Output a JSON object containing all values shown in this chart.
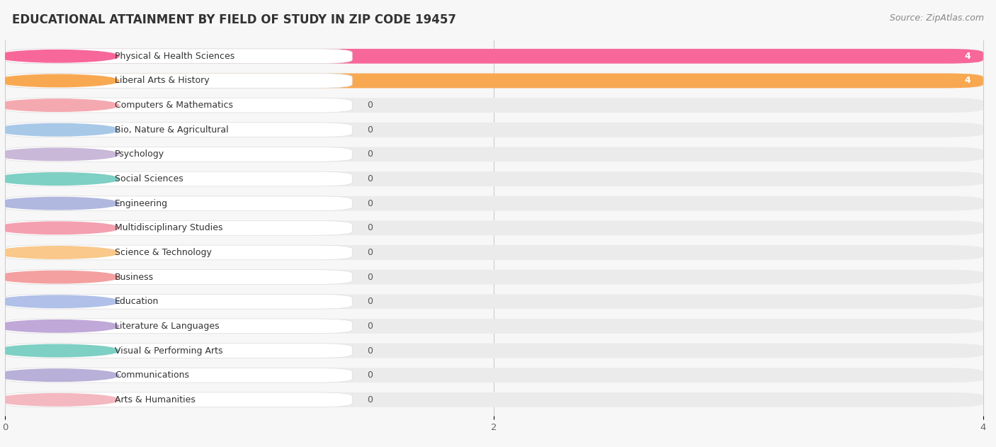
{
  "title": "EDUCATIONAL ATTAINMENT BY FIELD OF STUDY IN ZIP CODE 19457",
  "source": "Source: ZipAtlas.com",
  "categories": [
    "Physical & Health Sciences",
    "Liberal Arts & History",
    "Computers & Mathematics",
    "Bio, Nature & Agricultural",
    "Psychology",
    "Social Sciences",
    "Engineering",
    "Multidisciplinary Studies",
    "Science & Technology",
    "Business",
    "Education",
    "Literature & Languages",
    "Visual & Performing Arts",
    "Communications",
    "Arts & Humanities"
  ],
  "values": [
    4,
    4,
    0,
    0,
    0,
    0,
    0,
    0,
    0,
    0,
    0,
    0,
    0,
    0,
    0
  ],
  "bar_colors": [
    "#F7679A",
    "#F9A852",
    "#F4A9B0",
    "#A8C8E8",
    "#C9B8D8",
    "#7ECFC4",
    "#B0B8E0",
    "#F4A0B0",
    "#F9C88A",
    "#F4A0A0",
    "#B0C0E8",
    "#C0A8D8",
    "#7ECFC4",
    "#B8B0D8",
    "#F4B8C0"
  ],
  "bg_bar_color": "#EBEBEB",
  "bg_color": "#F7F7F7",
  "xlim_max": 4,
  "xticks": [
    0,
    2,
    4
  ],
  "title_fontsize": 12,
  "label_fontsize": 9,
  "value_fontsize": 9,
  "source_fontsize": 9
}
